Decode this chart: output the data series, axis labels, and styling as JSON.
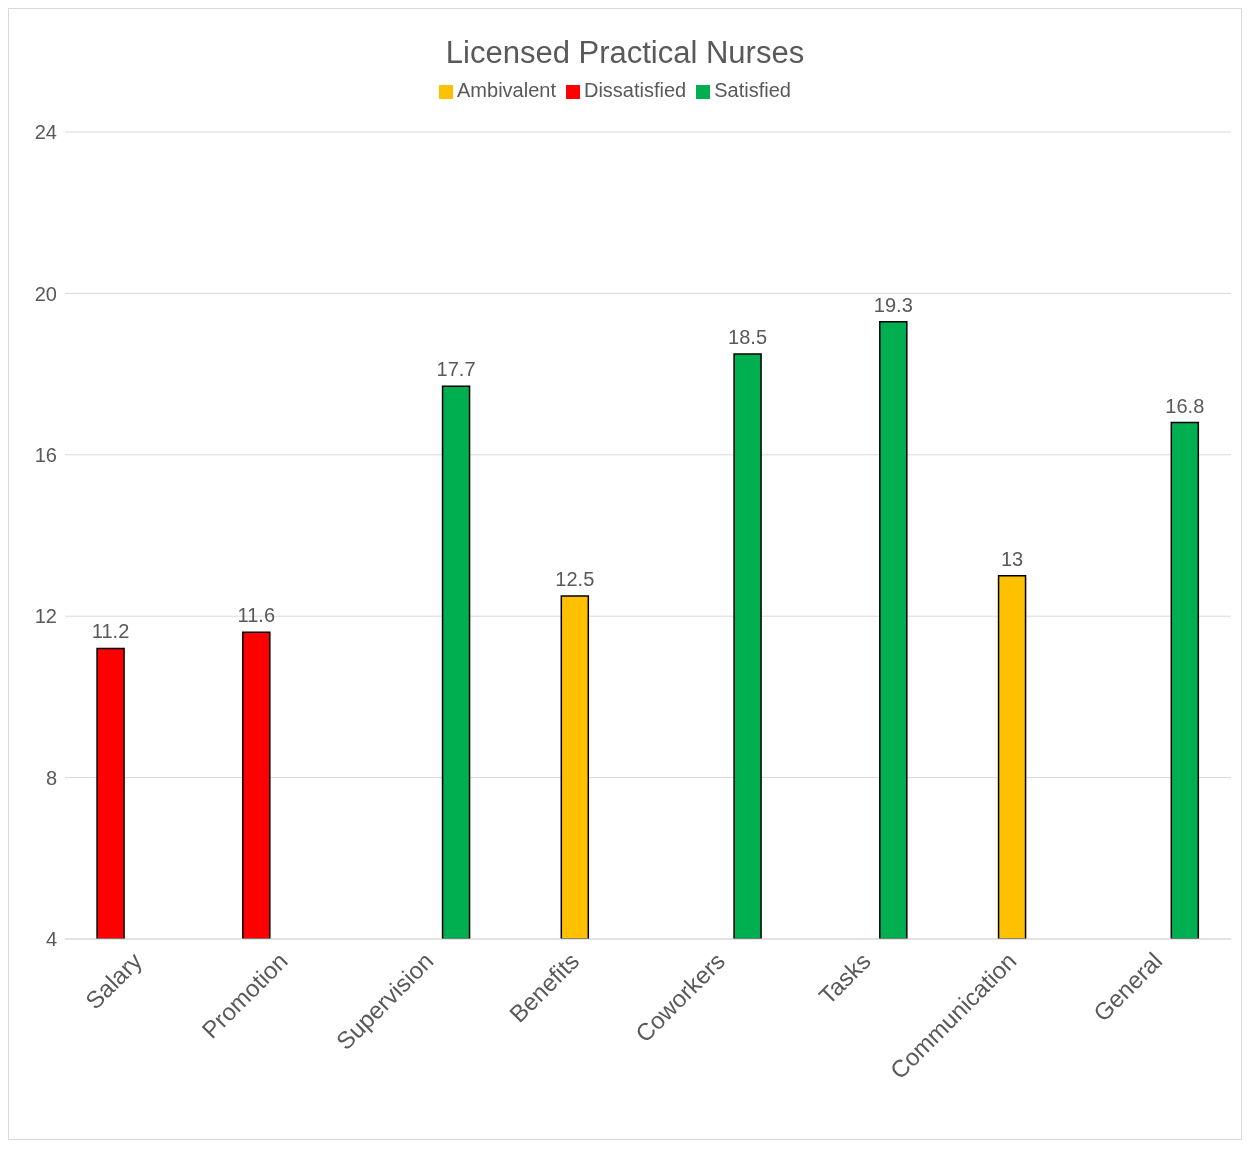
{
  "chart_data": {
    "type": "bar",
    "title": "Licensed Practical Nurses",
    "categories": [
      "Salary",
      "Promotion",
      "Supervision",
      "Benefits",
      "Coworkers",
      "Tasks",
      "Communication",
      "General"
    ],
    "series": [
      {
        "name": "Dissatisfied",
        "color": "#ff0000",
        "values": [
          11.2,
          11.6,
          null,
          null,
          null,
          null,
          null,
          null
        ]
      },
      {
        "name": "Ambivalent",
        "color": "#ffc000",
        "values": [
          null,
          null,
          null,
          12.5,
          null,
          null,
          13,
          null
        ]
      },
      {
        "name": "Satisfied",
        "color": "#00b050",
        "values": [
          null,
          null,
          17.7,
          null,
          18.5,
          19.3,
          null,
          16.8
        ]
      }
    ],
    "ylim": [
      4,
      24
    ],
    "yticks": [
      4,
      8,
      12,
      16,
      20,
      24
    ],
    "grid": "y",
    "legend": "top",
    "data_labels": true
  }
}
